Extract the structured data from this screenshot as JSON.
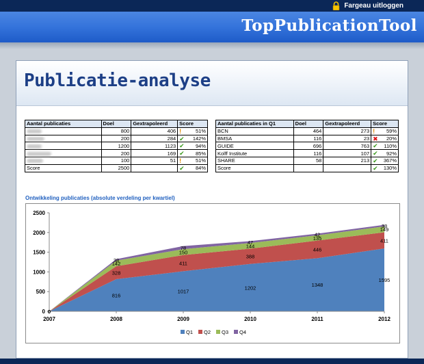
{
  "header": {
    "logout_label": "Fargeau uitloggen",
    "app_title": "TopPublicationTool"
  },
  "page": {
    "title": "Publicatie-analyse"
  },
  "table_left": {
    "headers": [
      "Aantal publicaties",
      "Doel",
      "Gextrapoleerd",
      "Score"
    ],
    "rows": [
      {
        "name": "",
        "doel": "800",
        "gex": "406",
        "icon": "exclamation-icon",
        "score": "51%"
      },
      {
        "name": "",
        "doel": "200",
        "gex": "284",
        "icon": "check-icon",
        "score": "142%"
      },
      {
        "name": "",
        "doel": "1200",
        "gex": "1123",
        "icon": "check-icon",
        "score": "94%"
      },
      {
        "name": "",
        "doel": "200",
        "gex": "169",
        "icon": "check-icon",
        "score": "85%"
      },
      {
        "name": "",
        "doel": "100",
        "gex": "51",
        "icon": "exclamation-icon",
        "score": "51%"
      },
      {
        "name": "Score",
        "doel": "2500",
        "gex": "",
        "icon": "check-icon",
        "score": "84%"
      }
    ]
  },
  "table_right": {
    "headers": [
      "Aantal publicaties in Q1",
      "Doel",
      "Gextrapoleerd",
      "Score"
    ],
    "rows": [
      {
        "name": "BCN",
        "doel": "464",
        "gex": "273",
        "icon": "exclamation-icon",
        "score": "59%"
      },
      {
        "name": "BMSA",
        "doel": "116",
        "gex": "23",
        "icon": "cross-icon",
        "score": "20%"
      },
      {
        "name": "GUIDE",
        "doel": "696",
        "gex": "763",
        "icon": "check-icon",
        "score": "110%"
      },
      {
        "name": "Kolff Institute",
        "doel": "116",
        "gex": "107",
        "icon": "check-icon",
        "score": "92%"
      },
      {
        "name": "SHARE",
        "doel": "58",
        "gex": "213",
        "icon": "check-icon",
        "score": "367%"
      },
      {
        "name": "Score",
        "doel": "",
        "gex": "",
        "icon": "check-icon",
        "score": "130%"
      }
    ]
  },
  "chart_title": "Ontwikkeling publicaties (absolute verdeling per kwartiel)",
  "chart_data": {
    "type": "area",
    "stacked": true,
    "x": [
      "2007",
      "2008",
      "2009",
      "2010",
      "2011",
      "2012"
    ],
    "series": [
      {
        "name": "Q1",
        "color": "#4f81bd",
        "values": [
          0,
          816,
          1017,
          1202,
          1348,
          1595
        ],
        "labels": [
          "0",
          "816",
          "1017",
          "1202",
          "1348",
          "1595"
        ]
      },
      {
        "name": "Q2",
        "color": "#c0504d",
        "values": [
          0,
          328,
          411,
          388,
          446,
          411
        ],
        "labels": [
          "0",
          "328",
          "411",
          "388",
          "446",
          "411"
        ]
      },
      {
        "name": "Q3",
        "color": "#9bbb59",
        "values": [
          0,
          142,
          150,
          144,
          135,
          149
        ],
        "labels": [
          "0",
          "142",
          "150",
          "144",
          "135",
          "149"
        ]
      },
      {
        "name": "Q4",
        "color": "#8064a2",
        "values": [
          0,
          38,
          78,
          47,
          42,
          38
        ],
        "labels": [
          "0",
          "38",
          "78",
          "47",
          "42",
          "38"
        ]
      }
    ],
    "yticks": [
      "0",
      "500",
      "1000",
      "1500",
      "2000",
      "2500"
    ],
    "ylim": [
      0,
      2500
    ],
    "grid": false,
    "legend": "bottom"
  }
}
